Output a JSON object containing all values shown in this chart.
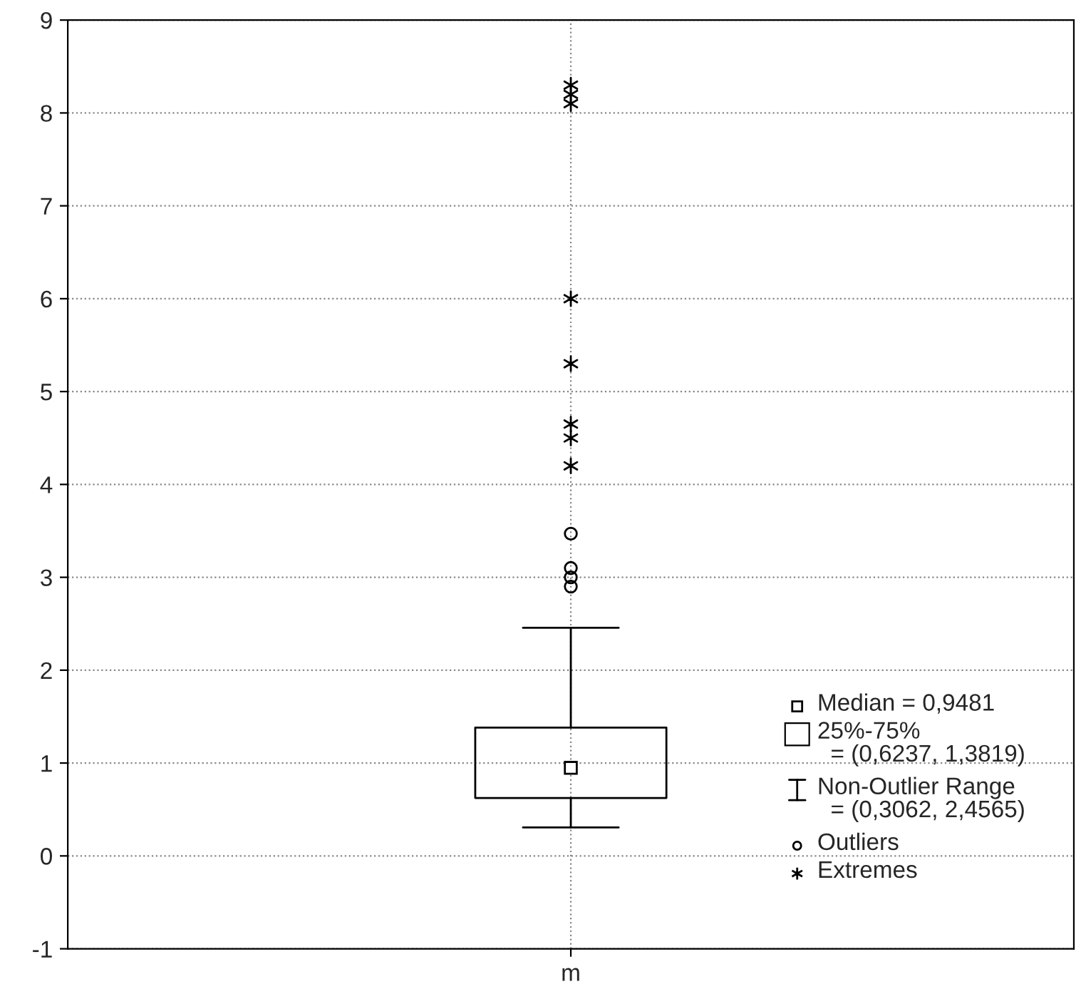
{
  "chart_data": {
    "type": "box",
    "categories": [
      "m"
    ],
    "boxes": [
      {
        "low": 0.3062,
        "q1": 0.6237,
        "median": 0.9481,
        "q3": 1.3819,
        "high": 2.4565,
        "outliers": [
          3.47,
          3.1,
          3.0,
          2.9
        ]
      }
    ],
    "series": [
      {
        "type": "scatter",
        "x": [
          "m",
          "m",
          "m",
          "m",
          "m",
          "m",
          "m",
          "m"
        ],
        "values": [
          8.3,
          8.2,
          8.1,
          6.0,
          5.3,
          4.65,
          4.5,
          4.2
        ],
        "marker": "cross"
      }
    ],
    "annotations": [
      "Median = 0,9481",
      "25%-75%\n  = (0,6237, 1,3819)",
      "Non-Outlier Range\n  = (0,3062, 2,4565)",
      "Outliers",
      "Extremes"
    ],
    "ylim": [
      -1,
      9
    ],
    "yticks": [
      -1,
      0,
      1,
      2,
      3,
      4,
      5,
      6,
      7,
      8,
      9
    ],
    "grid": true
  }
}
